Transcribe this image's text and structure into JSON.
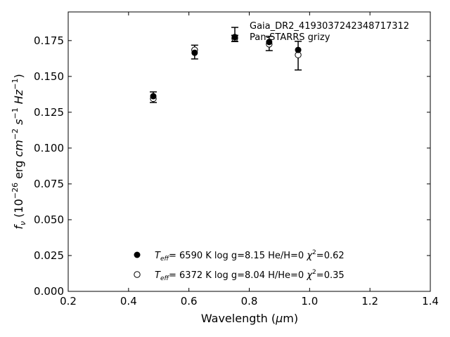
{
  "chart_data": {
    "type": "scatter",
    "xlabel": "Wavelength (μm)",
    "ylabel": "f_ν (10^-26 erg cm^-2 s^-1 Hz^-1)",
    "xlim": [
      0.2,
      1.4
    ],
    "ylim": [
      0.0,
      0.195
    ],
    "x_ticks": [
      "0.2",
      "0.4",
      "0.6",
      "0.8",
      "1.0",
      "1.2",
      "1.4"
    ],
    "y_ticks": [
      "0.000",
      "0.025",
      "0.050",
      "0.075",
      "0.100",
      "0.125",
      "0.150",
      "0.175"
    ],
    "grid": false,
    "legend_placement": "top-right",
    "legend": {
      "object_name": "Gaia_DR2_4193037242348717312",
      "photometry_label": "Pan-STARRS grizy"
    },
    "observed": {
      "name": "Pan-STARRS grizy",
      "x": [
        0.482,
        0.619,
        0.752,
        0.866,
        0.962
      ],
      "y": [
        0.1355,
        0.167,
        0.1765,
        0.173,
        0.1645
      ],
      "yerr": [
        0.0037,
        0.0048,
        0.0022,
        0.005,
        0.01
      ]
    },
    "series": [
      {
        "name": "He/H=0 model",
        "marker": "filled-circle",
        "teff": "6590 K",
        "logg": "8.15",
        "composition": "He/H=0",
        "chi2": "0.62",
        "x": [
          0.482,
          0.619,
          0.752,
          0.866,
          0.962
        ],
        "y": [
          0.1362,
          0.1665,
          0.1775,
          0.174,
          0.1685
        ]
      },
      {
        "name": "H/He=0 model",
        "marker": "open-circle",
        "teff": "6372 K",
        "logg": "8.04",
        "composition": "H/He=0",
        "chi2": "0.35",
        "x": [
          0.482,
          0.619,
          0.752,
          0.866,
          0.962
        ],
        "y": [
          0.1345,
          0.1685,
          0.1765,
          0.1725,
          0.165
        ]
      }
    ]
  }
}
